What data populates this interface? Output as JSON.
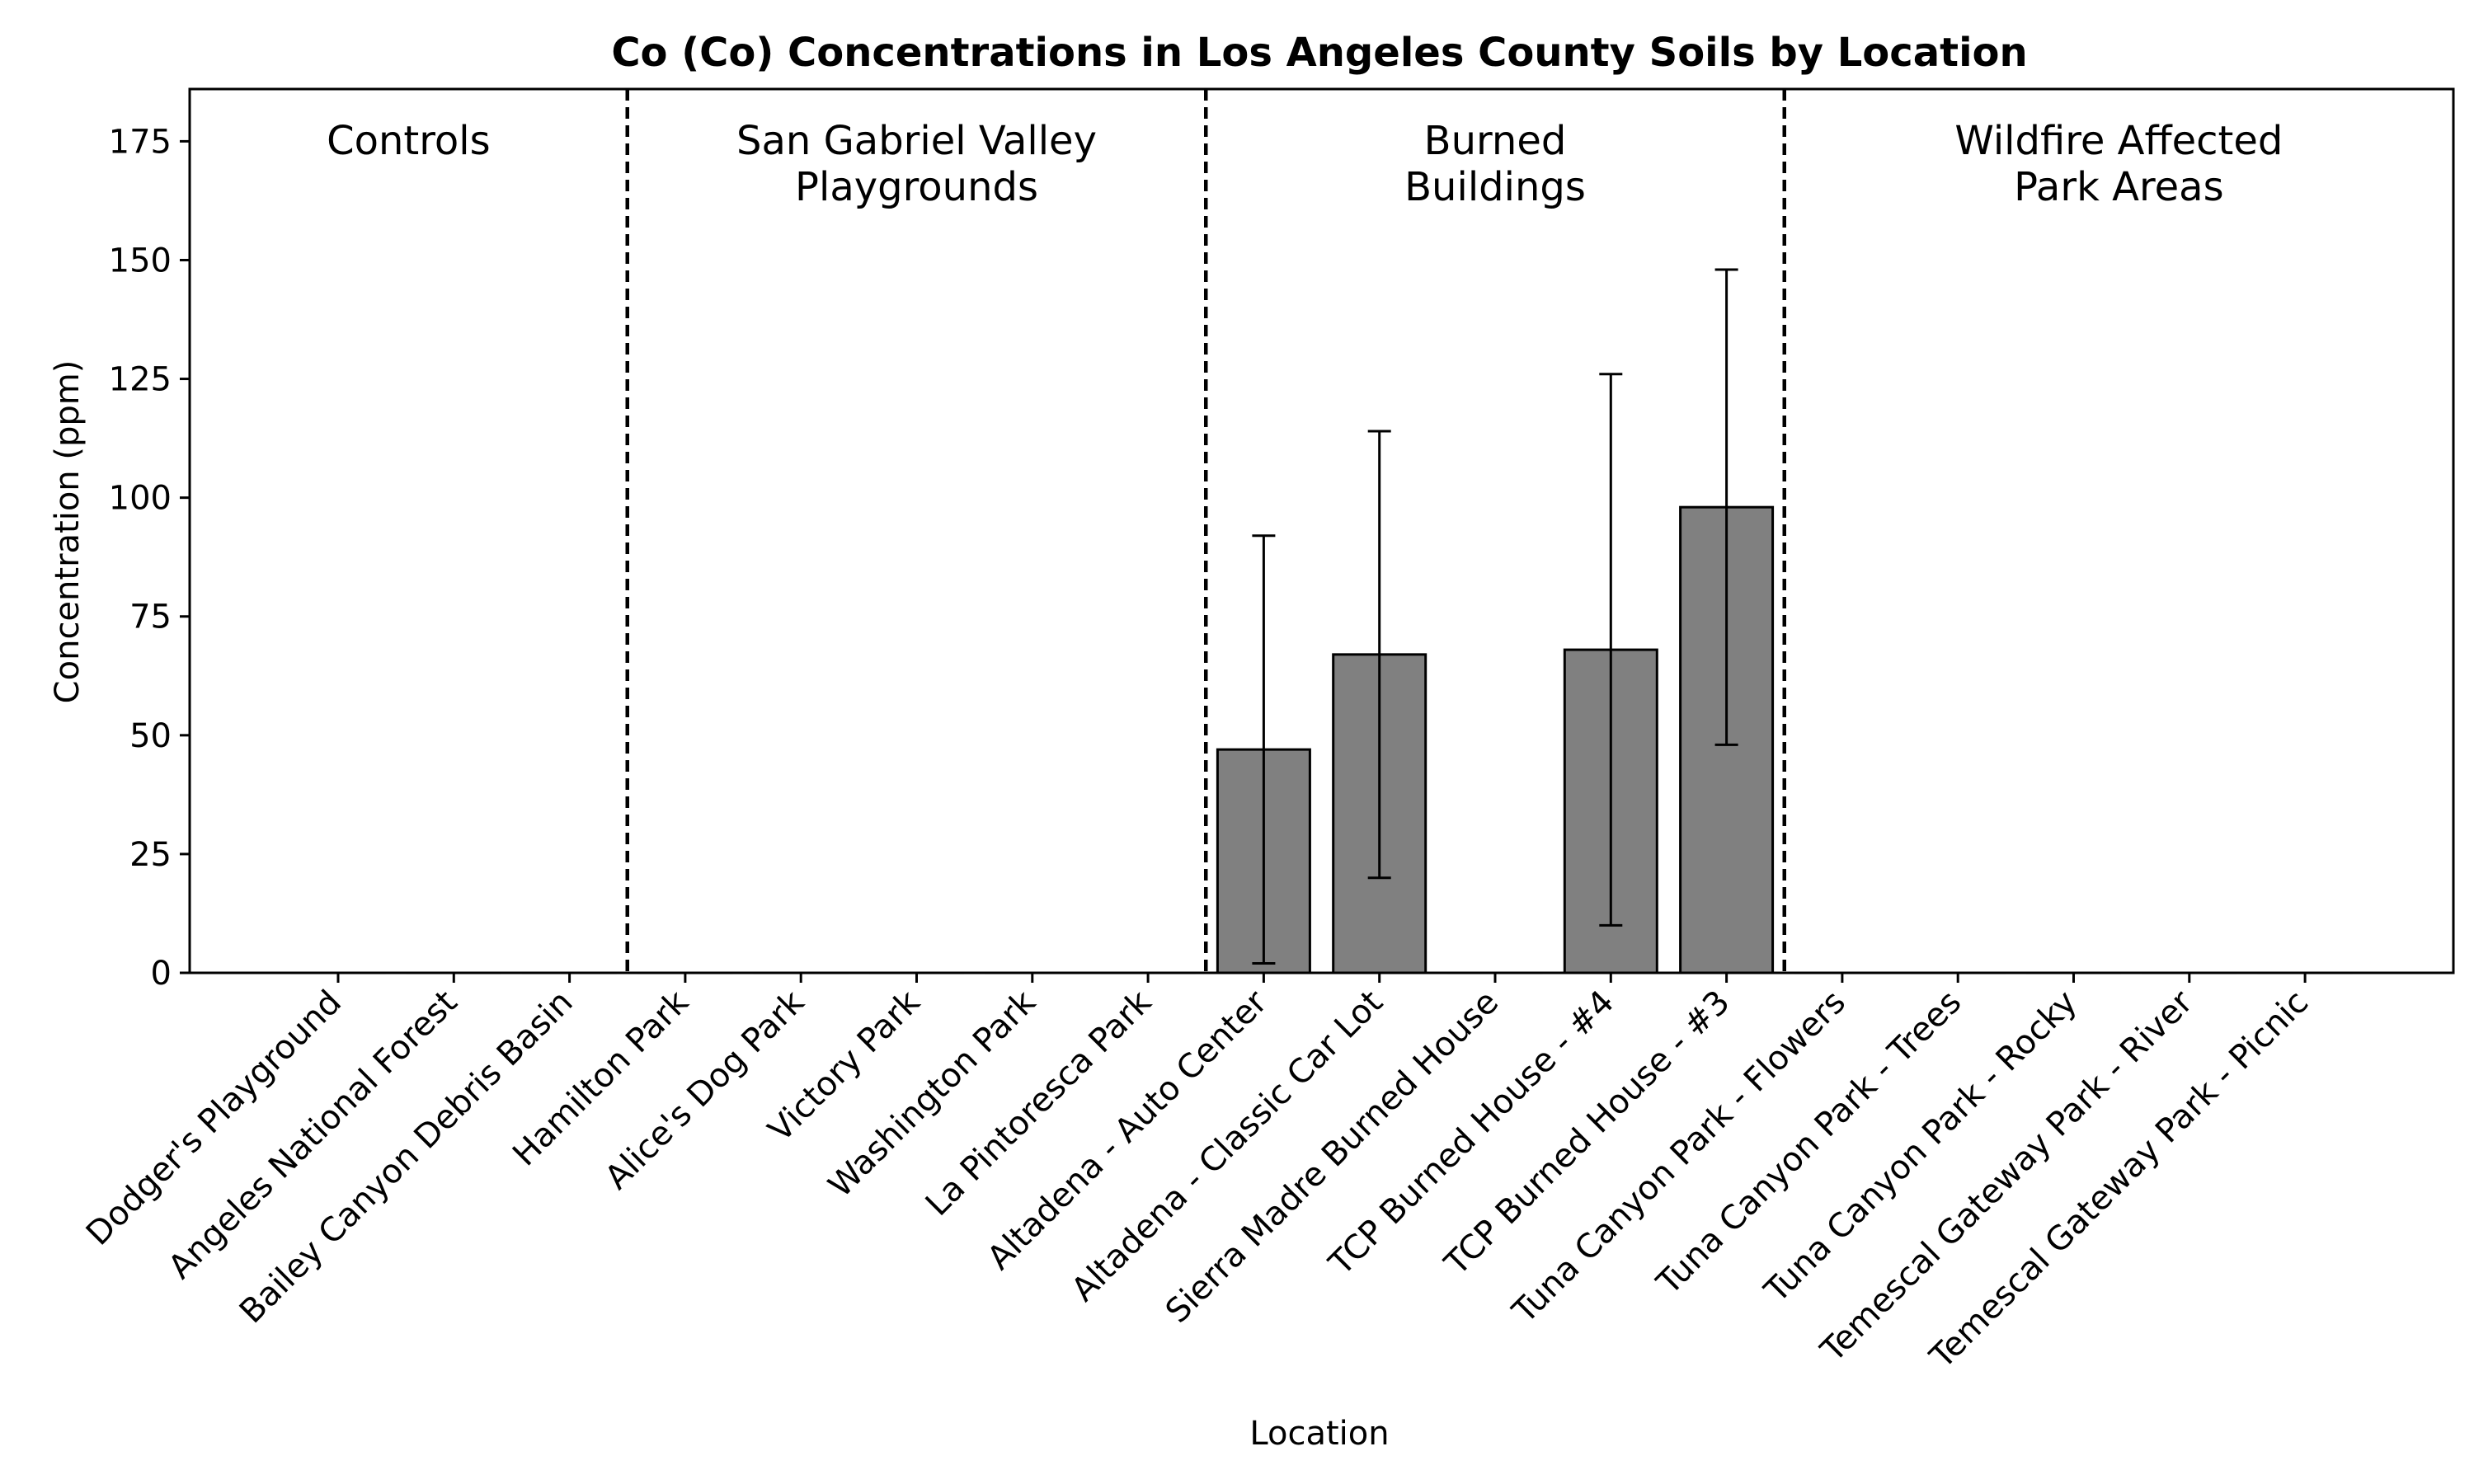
{
  "chart_data": {
    "type": "bar",
    "title": "Co (Co) Concentrations in Los Angeles County Soils by Location",
    "xlabel": "Location",
    "ylabel": "Concentration (ppm)",
    "ylim": [
      0,
      186
    ],
    "yticks": [
      0,
      25,
      50,
      75,
      100,
      125,
      150,
      175
    ],
    "grid": false,
    "bar_color": "#808080",
    "categories": [
      "Dodger's Playground",
      "Angeles National Forest",
      "Bailey Canyon Debris Basin",
      "Hamilton Park",
      "Alice's Dog Park",
      "Victory Park",
      "Washington Park",
      "La Pintoresca Park",
      "Altadena - Auto Center",
      "Altadena - Classic Car Lot",
      "Sierra Madre Burned House",
      "TCP Burned House - #4",
      "TCP Burned House - #3",
      "Tuna Canyon Park - Flowers",
      "Tuna Canyon Park - Trees",
      "Tuna Canyon Park - Rocky",
      "Temescal Gateway Park - River",
      "Temescal Gateway Park - Picnic"
    ],
    "values": [
      0,
      0,
      0,
      0,
      0,
      0,
      0,
      0,
      47,
      67,
      0,
      68,
      98,
      0,
      0,
      0,
      0,
      0
    ],
    "errors": [
      0,
      0,
      0,
      0,
      0,
      0,
      0,
      0,
      45,
      47,
      0,
      58,
      50,
      0,
      0,
      0,
      0,
      0
    ],
    "groups": [
      {
        "label": "Controls",
        "start": 0,
        "end": 2
      },
      {
        "label": "San Gabriel Valley\nPlaygrounds",
        "start": 3,
        "end": 7
      },
      {
        "label": "Burned\nBuildings",
        "start": 8,
        "end": 12
      },
      {
        "label": "Wildfire Affected\nPark Areas",
        "start": 13,
        "end": 17
      }
    ]
  }
}
